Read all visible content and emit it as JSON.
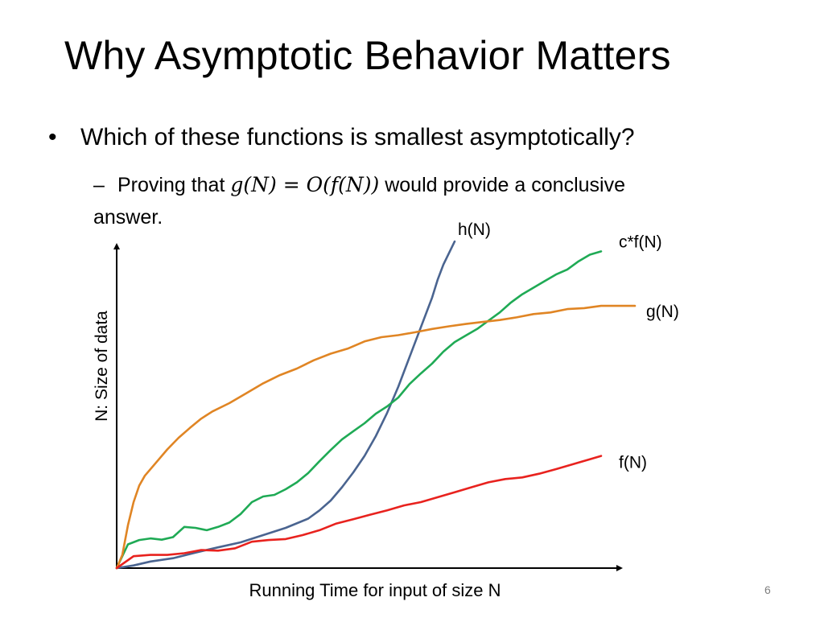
{
  "slide": {
    "title": "Why Asymptotic Behavior Matters",
    "bullet": "Which of these functions is smallest asymptotically?",
    "sub": {
      "prefix": "Proving that",
      "math": "g(N) = O(f(N))",
      "suffix": "would provide a conclusive answer."
    },
    "page_number": "6"
  },
  "chart_data": {
    "type": "line",
    "title": "",
    "xlabel": "Running Time for input of size N",
    "ylabel": "N: Size of data",
    "grid": false,
    "legend": "labels at line ends",
    "xlim": [
      0,
      100
    ],
    "ylim": [
      0,
      100
    ],
    "series": [
      {
        "name": "h(N)",
        "color": "#4a6490",
        "points": [
          [
            0,
            0
          ],
          [
            3,
            0.8
          ],
          [
            6,
            2
          ],
          [
            10,
            3
          ],
          [
            14,
            4.7
          ],
          [
            18,
            6.3
          ],
          [
            22,
            7.8
          ],
          [
            26,
            10
          ],
          [
            30,
            12.2
          ],
          [
            34,
            15
          ],
          [
            36,
            17.5
          ],
          [
            38,
            20.5
          ],
          [
            40,
            24.5
          ],
          [
            42,
            29
          ],
          [
            44,
            34
          ],
          [
            46,
            40
          ],
          [
            48,
            47
          ],
          [
            50,
            55
          ],
          [
            52,
            64
          ],
          [
            54,
            73
          ],
          [
            56,
            82
          ],
          [
            57,
            87.5
          ],
          [
            58,
            92
          ],
          [
            59,
            95.5
          ],
          [
            60,
            99
          ]
        ]
      },
      {
        "name": "c*f(N)",
        "color": "#1faa55",
        "points": [
          [
            0,
            0
          ],
          [
            2,
            7.2
          ],
          [
            4,
            8.5
          ],
          [
            6,
            9
          ],
          [
            8,
            8.6
          ],
          [
            10,
            9.4
          ],
          [
            12,
            12.5
          ],
          [
            14,
            12.2
          ],
          [
            16,
            11.5
          ],
          [
            18,
            12.5
          ],
          [
            20,
            13.8
          ],
          [
            22,
            16.4
          ],
          [
            24,
            20
          ],
          [
            26,
            21.7
          ],
          [
            28,
            22.2
          ],
          [
            30,
            23.9
          ],
          [
            32,
            26
          ],
          [
            34,
            28.8
          ],
          [
            36,
            32.4
          ],
          [
            38,
            35.8
          ],
          [
            40,
            39
          ],
          [
            42,
            41.5
          ],
          [
            44,
            43.9
          ],
          [
            46,
            46.8
          ],
          [
            48,
            49
          ],
          [
            50,
            51.7
          ],
          [
            52,
            55.8
          ],
          [
            54,
            59
          ],
          [
            56,
            62
          ],
          [
            58,
            65.6
          ],
          [
            60,
            68.5
          ],
          [
            62,
            70.5
          ],
          [
            64,
            72.5
          ],
          [
            66,
            75
          ],
          [
            68,
            77.5
          ],
          [
            70,
            80.5
          ],
          [
            72,
            83
          ],
          [
            74,
            85
          ],
          [
            76,
            87
          ],
          [
            78,
            89
          ],
          [
            80,
            90.5
          ],
          [
            82,
            93
          ],
          [
            84,
            95
          ],
          [
            86,
            96
          ]
        ]
      },
      {
        "name": "g(N)",
        "color": "#e08524",
        "points": [
          [
            0,
            0
          ],
          [
            1,
            4
          ],
          [
            2,
            13
          ],
          [
            3,
            20
          ],
          [
            4,
            25
          ],
          [
            5,
            28
          ],
          [
            7,
            32
          ],
          [
            9,
            36
          ],
          [
            11,
            39.5
          ],
          [
            13,
            42.5
          ],
          [
            15,
            45.3
          ],
          [
            17,
            47.5
          ],
          [
            20,
            50
          ],
          [
            23,
            53
          ],
          [
            26,
            56
          ],
          [
            29,
            58.5
          ],
          [
            32,
            60.5
          ],
          [
            35,
            63
          ],
          [
            38,
            65
          ],
          [
            41,
            66.5
          ],
          [
            44,
            68.7
          ],
          [
            47,
            70
          ],
          [
            50,
            70.6
          ],
          [
            53,
            71.5
          ],
          [
            56,
            72.5
          ],
          [
            59,
            73.3
          ],
          [
            62,
            74
          ],
          [
            65,
            74.6
          ],
          [
            68,
            75.2
          ],
          [
            71,
            76
          ],
          [
            74,
            77
          ],
          [
            77,
            77.5
          ],
          [
            80,
            78.5
          ],
          [
            83,
            78.8
          ],
          [
            86,
            79.5
          ],
          [
            90,
            79.5
          ],
          [
            92,
            79.5
          ]
        ]
      },
      {
        "name": "f(N)",
        "color": "#e8221e",
        "points": [
          [
            0,
            0
          ],
          [
            3,
            3.6
          ],
          [
            6,
            4
          ],
          [
            9,
            4
          ],
          [
            12,
            4.5
          ],
          [
            15,
            5.5
          ],
          [
            18,
            5.3
          ],
          [
            21,
            6
          ],
          [
            24,
            8
          ],
          [
            27,
            8.5
          ],
          [
            30,
            8.8
          ],
          [
            33,
            10
          ],
          [
            36,
            11.5
          ],
          [
            39,
            13.5
          ],
          [
            42,
            14.8
          ],
          [
            45,
            16.2
          ],
          [
            48,
            17.5
          ],
          [
            51,
            19
          ],
          [
            54,
            20
          ],
          [
            57,
            21.5
          ],
          [
            60,
            23
          ],
          [
            63,
            24.5
          ],
          [
            66,
            26
          ],
          [
            69,
            27
          ],
          [
            72,
            27.5
          ],
          [
            75,
            28.6
          ],
          [
            78,
            30
          ],
          [
            81,
            31.5
          ],
          [
            84,
            33
          ],
          [
            86,
            34
          ]
        ]
      }
    ]
  }
}
